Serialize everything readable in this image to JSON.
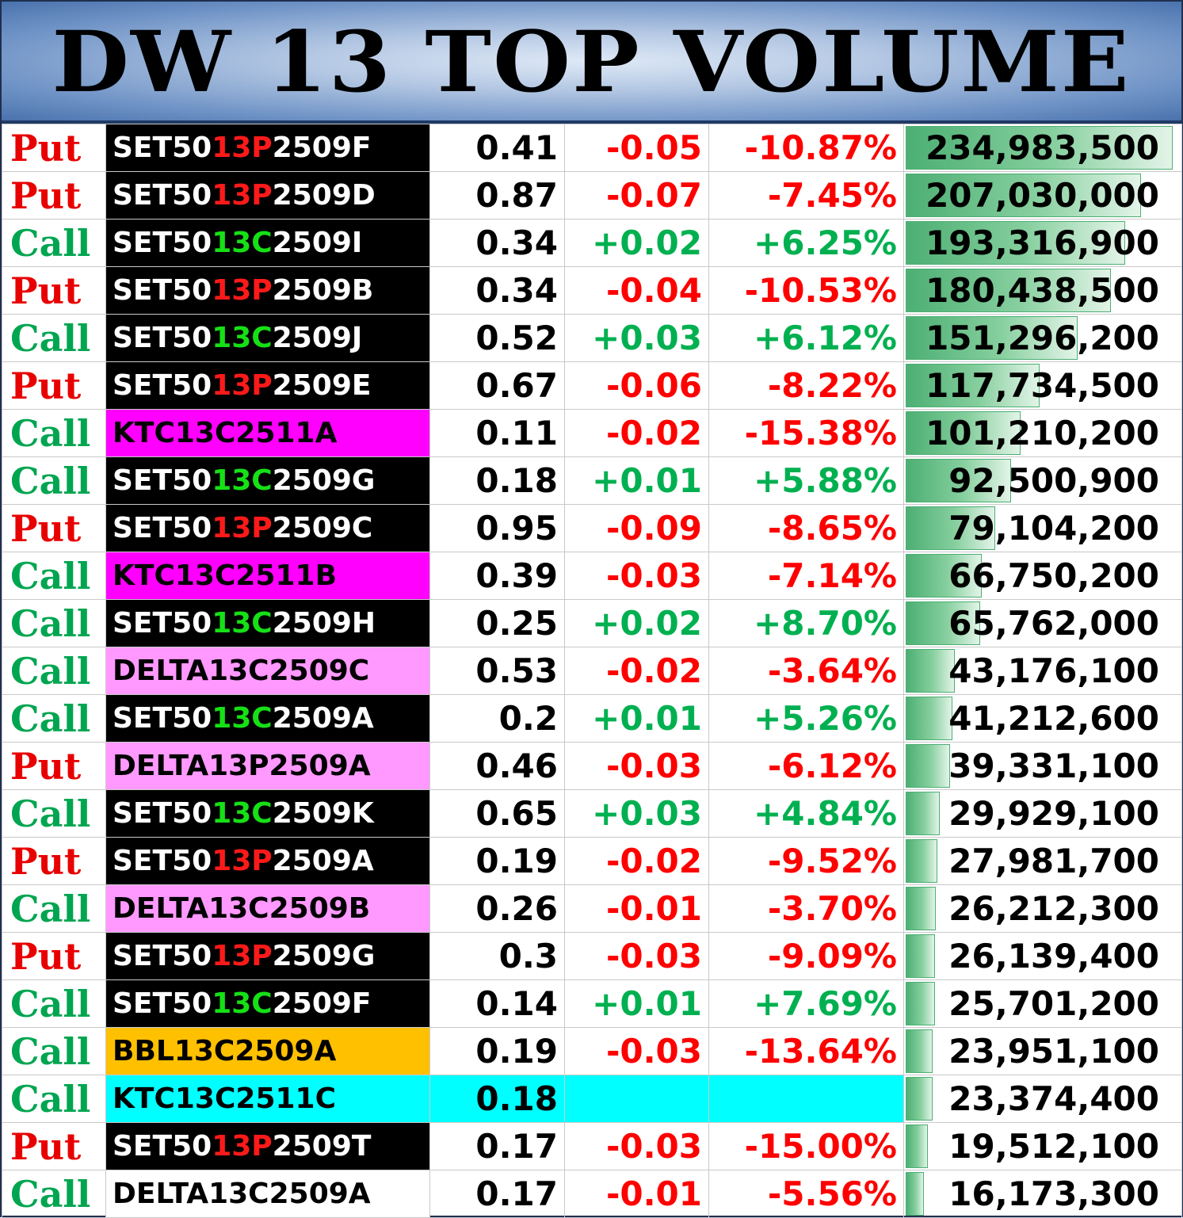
{
  "title": "DW 13 TOP VOLUME",
  "colors": {
    "put": "#e80000",
    "call": "#00a550",
    "negative": "#ff0000",
    "positive": "#00b050",
    "bar": "#4caf73"
  },
  "rows": [
    {
      "type": "Put",
      "prefix": "SET50",
      "mid": "13P",
      "suffix": "2509F",
      "bg": "#000000",
      "fg": "#ffffff",
      "price": "0.41",
      "change": "-0.05",
      "pct": "-10.87%",
      "volume": "234,983,500",
      "vol": 234983500
    },
    {
      "type": "Put",
      "prefix": "SET50",
      "mid": "13P",
      "suffix": "2509D",
      "bg": "#000000",
      "fg": "#ffffff",
      "price": "0.87",
      "change": "-0.07",
      "pct": "-7.45%",
      "volume": "207,030,000",
      "vol": 207030000
    },
    {
      "type": "Call",
      "prefix": "SET50",
      "mid": "13C",
      "suffix": "2509I",
      "bg": "#000000",
      "fg": "#ffffff",
      "price": "0.34",
      "change": "+0.02",
      "pct": "+6.25%",
      "volume": "193,316,900",
      "vol": 193316900
    },
    {
      "type": "Put",
      "prefix": "SET50",
      "mid": "13P",
      "suffix": "2509B",
      "bg": "#000000",
      "fg": "#ffffff",
      "price": "0.34",
      "change": "-0.04",
      "pct": "-10.53%",
      "volume": "180,438,500",
      "vol": 180438500
    },
    {
      "type": "Call",
      "prefix": "SET50",
      "mid": "13C",
      "suffix": "2509J",
      "bg": "#000000",
      "fg": "#ffffff",
      "price": "0.52",
      "change": "+0.03",
      "pct": "+6.12%",
      "volume": "151,296,200",
      "vol": 151296200
    },
    {
      "type": "Put",
      "prefix": "SET50",
      "mid": "13P",
      "suffix": "2509E",
      "bg": "#000000",
      "fg": "#ffffff",
      "price": "0.67",
      "change": "-0.06",
      "pct": "-8.22%",
      "volume": "117,734,500",
      "vol": 117734500
    },
    {
      "type": "Call",
      "prefix": "KTC13C2511A",
      "mid": "",
      "suffix": "",
      "bg": "#ff00ff",
      "fg": "#000000",
      "price": "0.11",
      "change": "-0.02",
      "pct": "-15.38%",
      "volume": "101,210,200",
      "vol": 101210200
    },
    {
      "type": "Call",
      "prefix": "SET50",
      "mid": "13C",
      "suffix": "2509G",
      "bg": "#000000",
      "fg": "#ffffff",
      "price": "0.18",
      "change": "+0.01",
      "pct": "+5.88%",
      "volume": "92,500,900",
      "vol": 92500900
    },
    {
      "type": "Put",
      "prefix": "SET50",
      "mid": "13P",
      "suffix": "2509C",
      "bg": "#000000",
      "fg": "#ffffff",
      "price": "0.95",
      "change": "-0.09",
      "pct": "-8.65%",
      "volume": "79,104,200",
      "vol": 79104200
    },
    {
      "type": "Call",
      "prefix": "KTC13C2511B",
      "mid": "",
      "suffix": "",
      "bg": "#ff00ff",
      "fg": "#000000",
      "price": "0.39",
      "change": "-0.03",
      "pct": "-7.14%",
      "volume": "66,750,200",
      "vol": 66750200
    },
    {
      "type": "Call",
      "prefix": "SET50",
      "mid": "13C",
      "suffix": "2509H",
      "bg": "#000000",
      "fg": "#ffffff",
      "price": "0.25",
      "change": "+0.02",
      "pct": "+8.70%",
      "volume": "65,762,000",
      "vol": 65762000
    },
    {
      "type": "Call",
      "prefix": "DELTA13C2509C",
      "mid": "",
      "suffix": "",
      "bg": "#ff99ff",
      "fg": "#000000",
      "price": "0.53",
      "change": "-0.02",
      "pct": "-3.64%",
      "volume": "43,176,100",
      "vol": 43176100
    },
    {
      "type": "Call",
      "prefix": "SET50",
      "mid": "13C",
      "suffix": "2509A",
      "bg": "#000000",
      "fg": "#ffffff",
      "price": "0.2",
      "change": "+0.01",
      "pct": "+5.26%",
      "volume": "41,212,600",
      "vol": 41212600
    },
    {
      "type": "Put",
      "prefix": "DELTA13P2509A",
      "mid": "",
      "suffix": "",
      "bg": "#ff99ff",
      "fg": "#000000",
      "price": "0.46",
      "change": "-0.03",
      "pct": "-6.12%",
      "volume": "39,331,100",
      "vol": 39331100
    },
    {
      "type": "Call",
      "prefix": "SET50",
      "mid": "13C",
      "suffix": "2509K",
      "bg": "#000000",
      "fg": "#ffffff",
      "price": "0.65",
      "change": "+0.03",
      "pct": "+4.84%",
      "volume": "29,929,100",
      "vol": 29929100
    },
    {
      "type": "Put",
      "prefix": "SET50",
      "mid": "13P",
      "suffix": "2509A",
      "bg": "#000000",
      "fg": "#ffffff",
      "price": "0.19",
      "change": "-0.02",
      "pct": "-9.52%",
      "volume": "27,981,700",
      "vol": 27981700
    },
    {
      "type": "Call",
      "prefix": "DELTA13C2509B",
      "mid": "",
      "suffix": "",
      "bg": "#ff99ff",
      "fg": "#000000",
      "price": "0.26",
      "change": "-0.01",
      "pct": "-3.70%",
      "volume": "26,212,300",
      "vol": 26212300
    },
    {
      "type": "Put",
      "prefix": "SET50",
      "mid": "13P",
      "suffix": "2509G",
      "bg": "#000000",
      "fg": "#ffffff",
      "price": "0.3",
      "change": "-0.03",
      "pct": "-9.09%",
      "volume": "26,139,400",
      "vol": 26139400
    },
    {
      "type": "Call",
      "prefix": "SET50",
      "mid": "13C",
      "suffix": "2509F",
      "bg": "#000000",
      "fg": "#ffffff",
      "price": "0.14",
      "change": "+0.01",
      "pct": "+7.69%",
      "volume": "25,701,200",
      "vol": 25701200
    },
    {
      "type": "Call",
      "prefix": "BBL13C2509A",
      "mid": "",
      "suffix": "",
      "bg": "#ffc000",
      "fg": "#000000",
      "price": "0.19",
      "change": "-0.03",
      "pct": "-13.64%",
      "volume": "23,951,100",
      "vol": 23951100
    },
    {
      "type": "Call",
      "prefix": "KTC13C2511C",
      "mid": "",
      "suffix": "",
      "bg": "#00ffff",
      "fg": "#000000",
      "price": "0.18",
      "change": "",
      "pct": "",
      "volume": "23,374,400",
      "vol": 23374400,
      "rowbg": "#00ffff"
    },
    {
      "type": "Put",
      "prefix": "SET50",
      "mid": "13P",
      "suffix": "2509T",
      "bg": "#000000",
      "fg": "#ffffff",
      "price": "0.17",
      "change": "-0.03",
      "pct": "-15.00%",
      "volume": "19,512,100",
      "vol": 19512100
    },
    {
      "type": "Call",
      "prefix": "DELTA13C2509A",
      "mid": "",
      "suffix": "",
      "bg": "#ffffff",
      "fg": "#000000",
      "price": "0.17",
      "change": "-0.01",
      "pct": "-5.56%",
      "volume": "16,173,300",
      "vol": 16173300
    }
  ]
}
